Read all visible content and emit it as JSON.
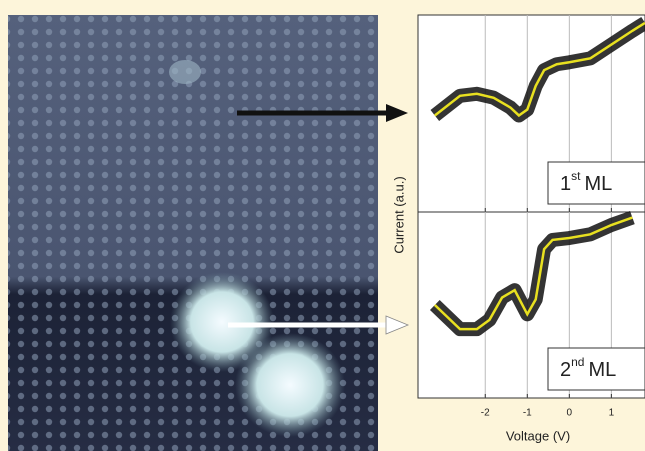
{
  "chart_data": [
    {
      "type": "line",
      "label": {
        "number": "1",
        "sup": "st",
        "text": "ML"
      },
      "x": [
        -3.2,
        -2.6,
        -2.2,
        -1.8,
        -1.4,
        -1.2,
        -1.0,
        -0.8,
        -0.6,
        -0.3,
        0,
        0.5,
        1,
        1.5,
        1.8
      ],
      "series": [
        {
          "color": "#e8e020",
          "values": [
            0.49,
            0.59,
            0.6,
            0.58,
            0.53,
            0.49,
            0.52,
            0.64,
            0.72,
            0.75,
            0.76,
            0.78,
            0.85,
            0.92,
            0.96
          ]
        }
      ],
      "xlim": [
        -3.6,
        1.8
      ],
      "ylim": [
        0,
        1
      ],
      "xticks": [
        -2,
        -1,
        0,
        1
      ],
      "grid": true
    },
    {
      "type": "line",
      "label": {
        "number": "2",
        "sup": "nd",
        "text": "ML"
      },
      "x_label": "Voltage (V)",
      "y_label": "Current (a.u.)",
      "x": [
        -3.2,
        -2.6,
        -2.2,
        -1.9,
        -1.6,
        -1.3,
        -1.0,
        -0.8,
        -0.6,
        -0.4,
        0,
        0.5,
        1,
        1.5
      ],
      "series": [
        {
          "color": "#e8e020",
          "values": [
            0.5,
            0.37,
            0.37,
            0.42,
            0.54,
            0.58,
            0.45,
            0.53,
            0.8,
            0.85,
            0.86,
            0.88,
            0.93,
            0.97
          ]
        }
      ],
      "xlim": [
        -3.6,
        1.8
      ],
      "ylim": [
        0,
        1
      ],
      "xticks": [
        -2,
        -1,
        0,
        1
      ],
      "grid": true
    }
  ]
}
